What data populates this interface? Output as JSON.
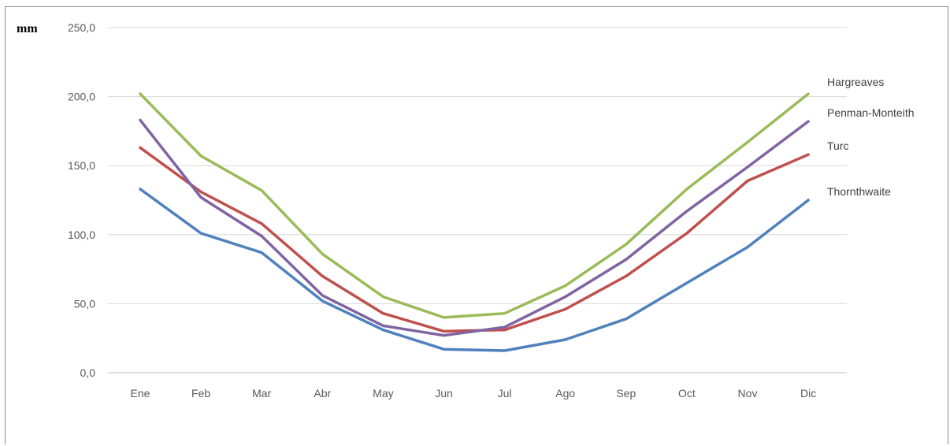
{
  "chart_data": {
    "type": "line",
    "unit_label": "mm",
    "categories": [
      "Ene",
      "Feb",
      "Mar",
      "Abr",
      "May",
      "Jun",
      "Jul",
      "Ago",
      "Sep",
      "Oct",
      "Nov",
      "Dic"
    ],
    "y_ticks": [
      "0,0",
      "50,0",
      "100,0",
      "150,0",
      "200,0",
      "250,0"
    ],
    "ylim": [
      0,
      250
    ],
    "grid": true,
    "legend": "inline-right",
    "series": [
      {
        "name": "Hargreaves",
        "color": "#9bbb59",
        "values": [
          202,
          157,
          132,
          86,
          55,
          40,
          43,
          63,
          93,
          133,
          167,
          202
        ]
      },
      {
        "name": "Penman-Monteith",
        "color": "#8064a2",
        "values": [
          183,
          127,
          99,
          56,
          34,
          27,
          33,
          55,
          82,
          117,
          149,
          182
        ]
      },
      {
        "name": "Turc",
        "color": "#c0504d",
        "values": [
          163,
          131,
          108,
          70,
          43,
          30,
          31,
          46,
          70,
          101,
          139,
          158
        ]
      },
      {
        "name": "Thornthwaite",
        "color": "#4f81bd",
        "values": [
          133,
          101,
          87,
          52,
          31,
          17,
          16,
          24,
          39,
          65,
          91,
          125
        ]
      }
    ]
  }
}
